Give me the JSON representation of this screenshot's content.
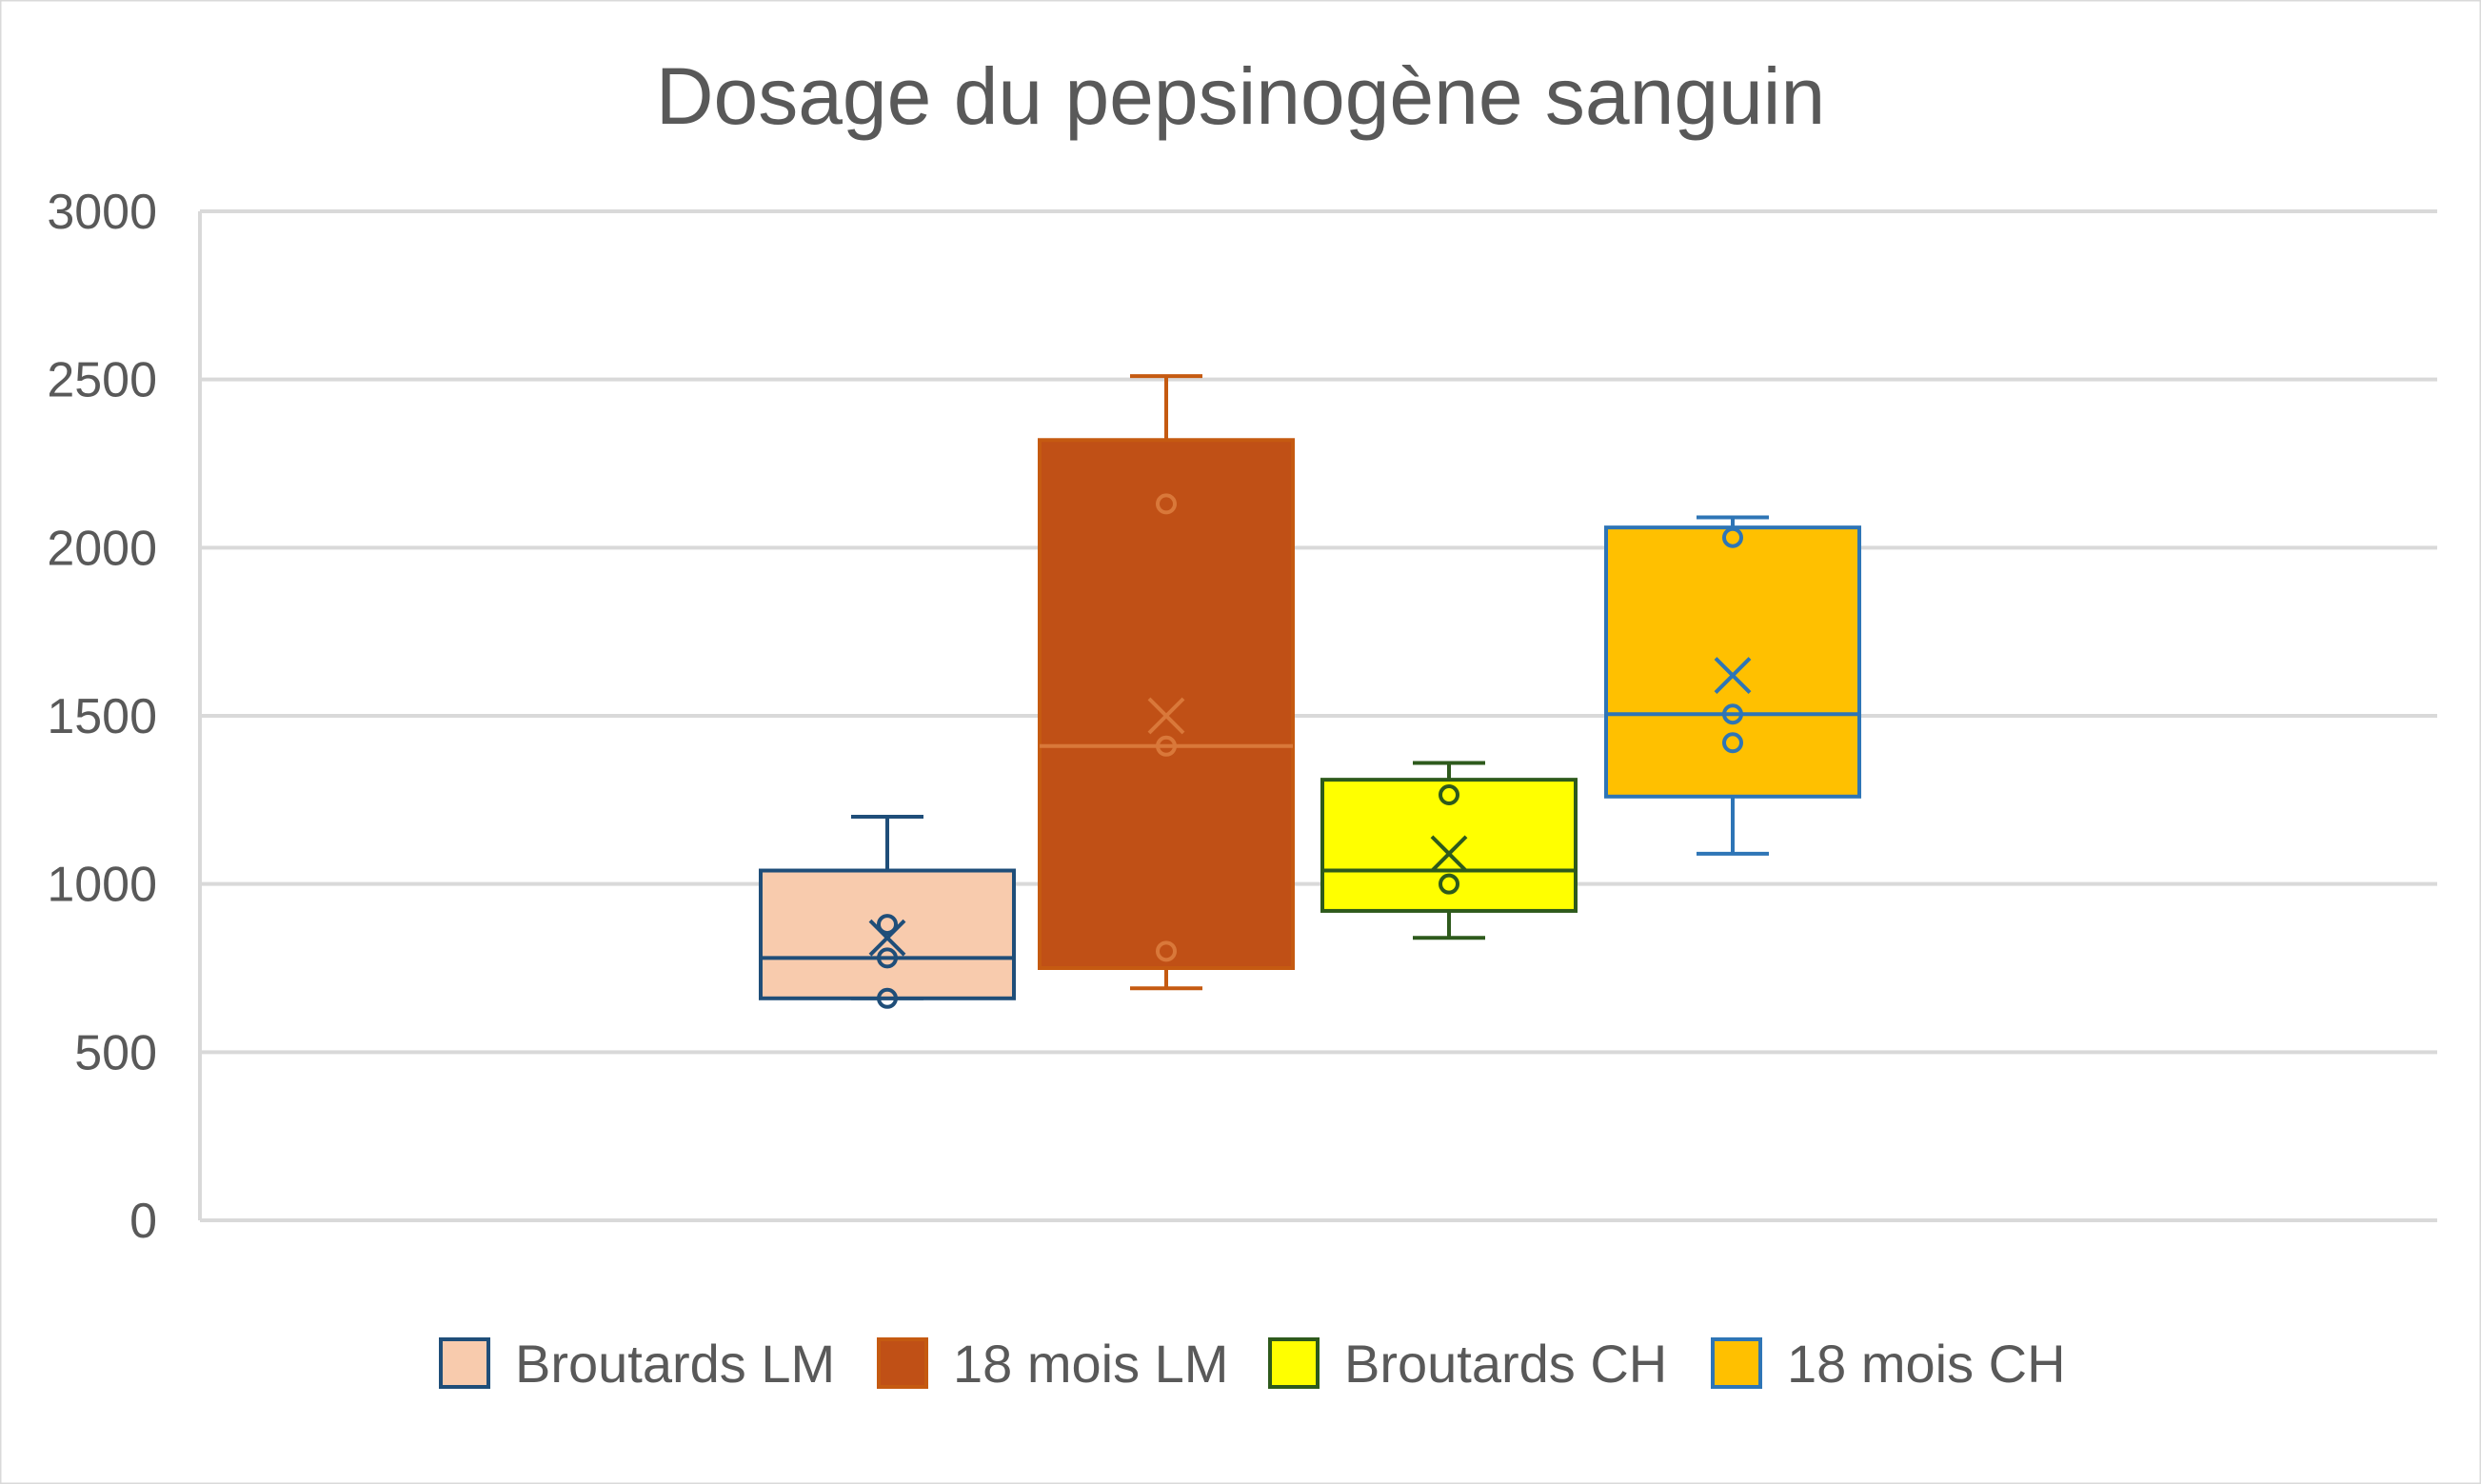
{
  "chart_data": {
    "type": "box",
    "title": "Dosage du pepsinogène sanguin",
    "xlabel": "",
    "ylabel": "",
    "ylim": [
      0,
      3000
    ],
    "yticks": [
      0,
      500,
      1000,
      1500,
      2000,
      2500,
      3000
    ],
    "grid": true,
    "legend_position": "bottom",
    "series": [
      {
        "name": "Broutards LM",
        "fill": "#F8CBAD",
        "stroke": "#1F4E79",
        "whisker_low": 660,
        "q1": 660,
        "median": 780,
        "q3": 1040,
        "whisker_high": 1200,
        "mean": 840,
        "points": [
          660,
          780,
          880
        ]
      },
      {
        "name": "18 mois LM",
        "fill": "#C0504D",
        "stroke": "#C55A11",
        "whisker_low": 690,
        "q1": 750,
        "median": 1410,
        "q3": 2320,
        "whisker_high": 2510,
        "mean": 1500,
        "points": [
          800,
          1410,
          2130
        ]
      },
      {
        "name": "Broutards CH",
        "fill": "#FFFF00",
        "stroke": "#2E5A1C",
        "whisker_low": 840,
        "q1": 920,
        "median": 1040,
        "q3": 1310,
        "whisker_high": 1360,
        "mean": 1090,
        "points": [
          1000,
          1265
        ]
      },
      {
        "name": "18 mois CH",
        "fill": "#FFC000",
        "stroke": "#2E75B6",
        "whisker_low": 1090,
        "q1": 1260,
        "median": 1505,
        "q3": 2060,
        "whisker_high": 2090,
        "mean": 1620,
        "points": [
          1420,
          1505,
          2030
        ]
      }
    ]
  }
}
